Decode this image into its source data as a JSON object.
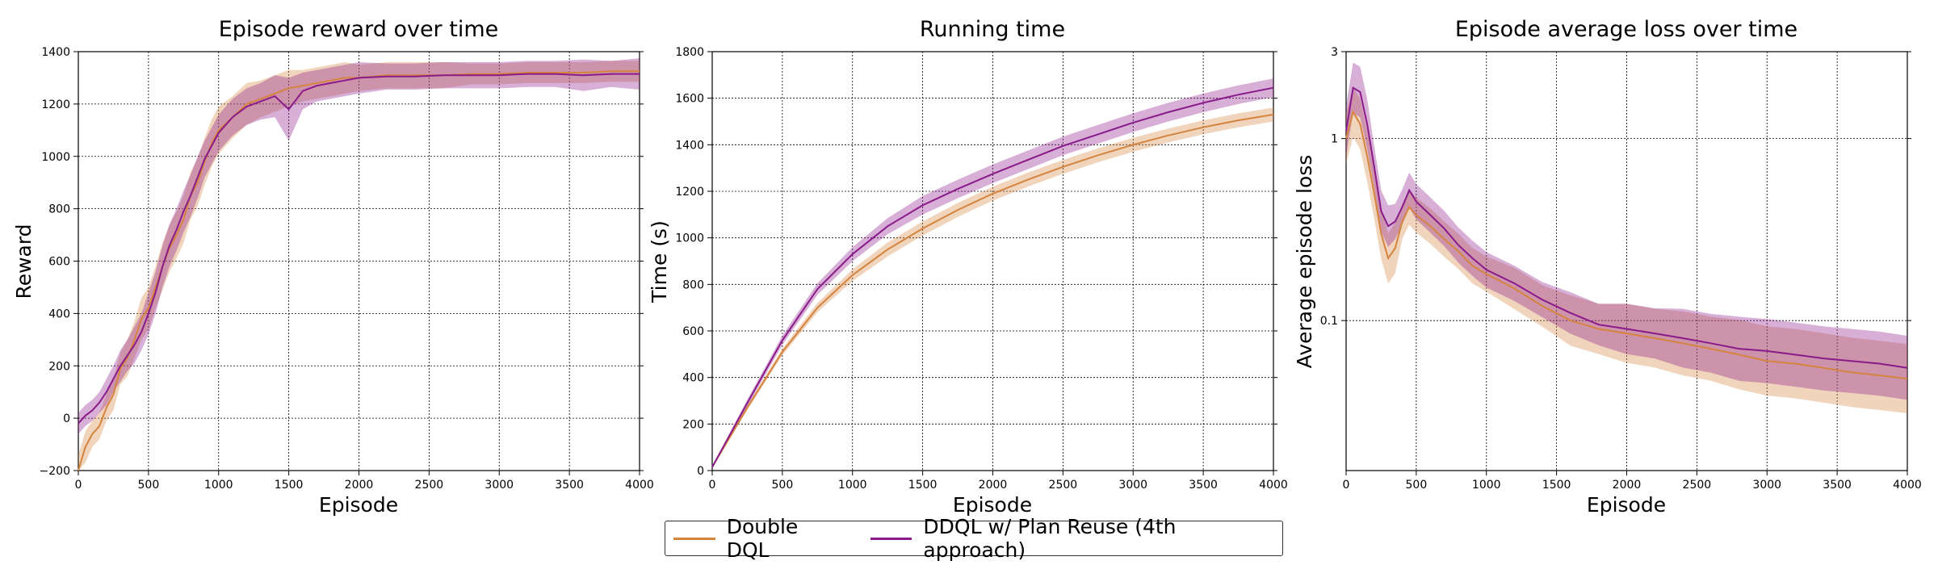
{
  "colors": {
    "double_dql": "#d4843e",
    "ddql_plan_reuse": "#8b1a8b"
  },
  "legend": {
    "items": [
      {
        "label": "Double DQL",
        "color": "#d4843e"
      },
      {
        "label": "DDQL w/ Plan Reuse (4th approach)",
        "color": "#8b1a8b"
      }
    ]
  },
  "chart_data": [
    {
      "type": "line",
      "title": "Episode reward over time",
      "xlabel": "Episode",
      "ylabel": "Reward",
      "xlim": [
        0,
        4000
      ],
      "ylim": [
        -200,
        1400
      ],
      "xticks": [
        0,
        500,
        1000,
        1500,
        2000,
        2500,
        3000,
        3500,
        4000
      ],
      "xtick_labels": [
        "0",
        "500",
        "1000",
        "1500",
        "2000",
        "2500",
        "3000",
        "3500",
        "4000"
      ],
      "yticks": [
        -200,
        0,
        200,
        400,
        600,
        800,
        1000,
        1200,
        1400
      ],
      "ytick_labels": [
        "−200",
        "0",
        "200",
        "400",
        "600",
        "800",
        "1000",
        "1200",
        "1400"
      ],
      "grid": true,
      "yscale": "linear",
      "series": [
        {
          "name": "Double DQL",
          "color": "#d4843e",
          "x": [
            0,
            50,
            100,
            150,
            200,
            250,
            300,
            350,
            400,
            450,
            500,
            550,
            600,
            650,
            700,
            750,
            800,
            850,
            900,
            950,
            1000,
            1100,
            1200,
            1300,
            1400,
            1500,
            1600,
            1700,
            1800,
            1900,
            2000,
            2200,
            2400,
            2600,
            2800,
            3000,
            3200,
            3400,
            3600,
            3800,
            4000
          ],
          "y": [
            -200,
            -110,
            -60,
            -30,
            40,
            90,
            190,
            230,
            300,
            380,
            420,
            500,
            580,
            650,
            700,
            760,
            850,
            900,
            980,
            1050,
            1100,
            1150,
            1200,
            1220,
            1240,
            1260,
            1270,
            1280,
            1290,
            1300,
            1300,
            1310,
            1310,
            1310,
            1315,
            1315,
            1320,
            1320,
            1320,
            1325,
            1325
          ],
          "band": [
            60,
            60,
            50,
            50,
            50,
            60,
            60,
            70,
            70,
            80,
            80,
            80,
            90,
            90,
            90,
            90,
            90,
            90,
            90,
            90,
            90,
            80,
            80,
            70,
            70,
            70,
            60,
            60,
            60,
            60,
            50,
            50,
            50,
            50,
            40,
            40,
            40,
            40,
            40,
            40,
            40
          ]
        },
        {
          "name": "DDQL w/ Plan Reuse (4th approach)",
          "color": "#8b1a8b",
          "x": [
            0,
            50,
            100,
            150,
            200,
            250,
            300,
            350,
            400,
            450,
            500,
            550,
            600,
            650,
            700,
            750,
            800,
            850,
            900,
            950,
            1000,
            1100,
            1200,
            1300,
            1400,
            1500,
            1600,
            1700,
            1800,
            1900,
            2000,
            2200,
            2400,
            2600,
            2800,
            3000,
            3200,
            3400,
            3600,
            3800,
            4000
          ],
          "y": [
            -20,
            10,
            30,
            60,
            100,
            150,
            200,
            240,
            280,
            330,
            400,
            480,
            580,
            660,
            720,
            790,
            850,
            920,
            990,
            1040,
            1090,
            1150,
            1190,
            1210,
            1230,
            1180,
            1250,
            1270,
            1280,
            1290,
            1300,
            1305,
            1305,
            1310,
            1310,
            1310,
            1315,
            1315,
            1310,
            1315,
            1315
          ],
          "band": [
            40,
            40,
            40,
            40,
            50,
            50,
            60,
            60,
            70,
            70,
            80,
            80,
            80,
            80,
            80,
            80,
            80,
            80,
            70,
            70,
            70,
            70,
            70,
            70,
            80,
            120,
            70,
            60,
            60,
            60,
            60,
            50,
            50,
            50,
            50,
            50,
            50,
            50,
            60,
            50,
            60
          ]
        }
      ]
    },
    {
      "type": "line",
      "title": "Running time",
      "xlabel": "Episode",
      "ylabel": "Time (s)",
      "xlim": [
        0,
        4000
      ],
      "ylim": [
        0,
        1800
      ],
      "xticks": [
        0,
        500,
        1000,
        1500,
        2000,
        2500,
        3000,
        3500,
        4000
      ],
      "xtick_labels": [
        "0",
        "500",
        "1000",
        "1500",
        "2000",
        "2500",
        "3000",
        "3500",
        "4000"
      ],
      "yticks": [
        0,
        200,
        400,
        600,
        800,
        1000,
        1200,
        1400,
        1600,
        1800
      ],
      "ytick_labels": [
        "0",
        "200",
        "400",
        "600",
        "800",
        "1000",
        "1200",
        "1400",
        "1600",
        "1800"
      ],
      "grid": true,
      "yscale": "linear",
      "series": [
        {
          "name": "Double DQL",
          "color": "#d4843e",
          "x": [
            0,
            250,
            500,
            750,
            1000,
            1250,
            1500,
            1750,
            2000,
            2250,
            2500,
            2750,
            3000,
            3250,
            3500,
            3750,
            4000
          ],
          "y": [
            15,
            270,
            510,
            700,
            840,
            950,
            1040,
            1120,
            1190,
            1250,
            1305,
            1355,
            1400,
            1440,
            1475,
            1505,
            1530
          ],
          "band": [
            5,
            10,
            15,
            20,
            25,
            30,
            30,
            30,
            30,
            30,
            30,
            30,
            30,
            30,
            30,
            30,
            30
          ]
        },
        {
          "name": "DDQL w/ Plan Reuse (4th approach)",
          "color": "#8b1a8b",
          "x": [
            0,
            250,
            500,
            750,
            1000,
            1250,
            1500,
            1750,
            2000,
            2250,
            2500,
            2750,
            3000,
            3250,
            3500,
            3750,
            4000
          ],
          "y": [
            15,
            290,
            560,
            780,
            930,
            1050,
            1140,
            1210,
            1275,
            1335,
            1395,
            1445,
            1495,
            1540,
            1580,
            1615,
            1645
          ],
          "band": [
            5,
            15,
            20,
            25,
            30,
            35,
            40,
            40,
            40,
            40,
            40,
            40,
            40,
            40,
            40,
            40,
            40
          ]
        }
      ]
    },
    {
      "type": "line",
      "title": "Episode average loss over time",
      "xlabel": "Episode",
      "ylabel": "Average episode loss",
      "xlim": [
        0,
        4000
      ],
      "ylim": [
        0.015,
        3
      ],
      "xticks": [
        0,
        500,
        1000,
        1500,
        2000,
        2500,
        3000,
        3500,
        4000
      ],
      "xtick_labels": [
        "0",
        "500",
        "1000",
        "1500",
        "2000",
        "2500",
        "3000",
        "3500",
        "4000"
      ],
      "yticks": [
        0.1,
        1,
        3
      ],
      "ytick_labels": [
        "0.1",
        "1",
        "3"
      ],
      "grid": true,
      "yscale": "log",
      "series": [
        {
          "name": "Double DQL",
          "color": "#d4843e",
          "x": [
            0,
            50,
            100,
            150,
            200,
            250,
            300,
            350,
            400,
            450,
            500,
            600,
            700,
            800,
            900,
            1000,
            1200,
            1400,
            1600,
            1800,
            2000,
            2200,
            2400,
            2600,
            2800,
            3000,
            3200,
            3400,
            3600,
            3800,
            4000
          ],
          "y": [
            1.0,
            1.4,
            1.2,
            0.8,
            0.5,
            0.3,
            0.22,
            0.25,
            0.35,
            0.42,
            0.38,
            0.33,
            0.28,
            0.24,
            0.2,
            0.18,
            0.15,
            0.12,
            0.1,
            0.09,
            0.085,
            0.08,
            0.075,
            0.07,
            0.065,
            0.06,
            0.058,
            0.055,
            0.052,
            0.05,
            0.048
          ],
          "band": [
            0.15,
            0.15,
            0.15,
            0.15,
            0.15,
            0.15,
            0.15,
            0.15,
            0.1,
            0.1,
            0.1,
            0.1,
            0.1,
            0.1,
            0.1,
            0.1,
            0.12,
            0.12,
            0.15,
            0.15,
            0.18,
            0.18,
            0.2,
            0.2,
            0.22,
            0.22,
            0.22,
            0.22,
            0.22,
            0.22,
            0.22
          ]
        },
        {
          "name": "DDQL w/ Plan Reuse (4th approach)",
          "color": "#8b1a8b",
          "x": [
            0,
            50,
            100,
            150,
            200,
            250,
            300,
            350,
            400,
            450,
            500,
            600,
            700,
            800,
            900,
            1000,
            1200,
            1400,
            1600,
            1800,
            2000,
            2200,
            2400,
            2600,
            2800,
            3000,
            3200,
            3400,
            3600,
            3800,
            4000
          ],
          "y": [
            1.1,
            1.9,
            1.8,
            1.2,
            0.7,
            0.4,
            0.33,
            0.35,
            0.42,
            0.52,
            0.45,
            0.38,
            0.32,
            0.26,
            0.22,
            0.19,
            0.16,
            0.13,
            0.11,
            0.095,
            0.09,
            0.085,
            0.08,
            0.075,
            0.07,
            0.068,
            0.065,
            0.062,
            0.06,
            0.058,
            0.055
          ],
          "band": [
            0.15,
            0.15,
            0.15,
            0.15,
            0.12,
            0.12,
            0.12,
            0.1,
            0.1,
            0.1,
            0.1,
            0.1,
            0.1,
            0.1,
            0.1,
            0.1,
            0.1,
            0.1,
            0.12,
            0.12,
            0.15,
            0.15,
            0.18,
            0.18,
            0.2,
            0.2,
            0.2,
            0.2,
            0.2,
            0.2,
            0.2
          ]
        }
      ]
    }
  ]
}
